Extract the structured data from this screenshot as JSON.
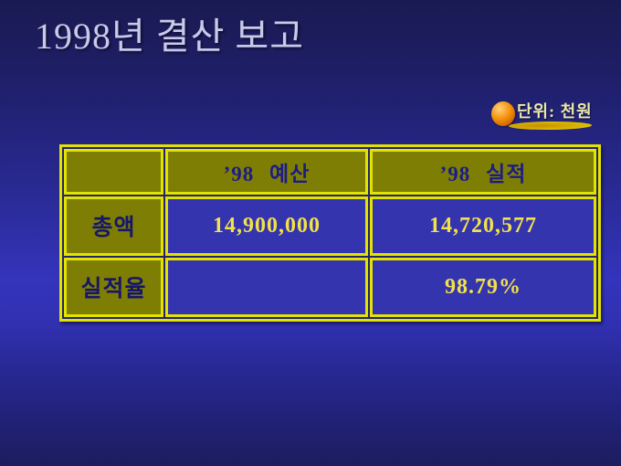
{
  "slide": {
    "title": "1998년 결산 보고"
  },
  "unit_badge": {
    "label": "단위: 천원",
    "ball_icon": "sphere-icon",
    "ball_color": "#f6920a",
    "underline_color": "#d8b400"
  },
  "table": {
    "columns": [
      "",
      "’98  예산",
      "’98  실적"
    ],
    "rows": [
      {
        "label": "총액",
        "values": [
          "14,900,000",
          "14,720,577"
        ]
      },
      {
        "label": "실적율",
        "values": [
          "",
          "98.79%"
        ]
      }
    ]
  },
  "chart_data": {
    "type": "table",
    "title": "1998년 결산 보고",
    "unit": "단위: 천원",
    "columns": [
      "",
      "’98 예산",
      "’98 실적"
    ],
    "cells": [
      [
        "총액",
        "14,900,000",
        "14,720,577"
      ],
      [
        "실적율",
        "",
        "98.79%"
      ]
    ]
  },
  "colors": {
    "border_yellow": "#e3e300",
    "cell_olive": "#7e7e04",
    "cell_blue": "#3434ae",
    "value_yellow": "#f2e14a",
    "header_navy": "#1c1c86",
    "title_lavender": "#c9c9e9"
  }
}
